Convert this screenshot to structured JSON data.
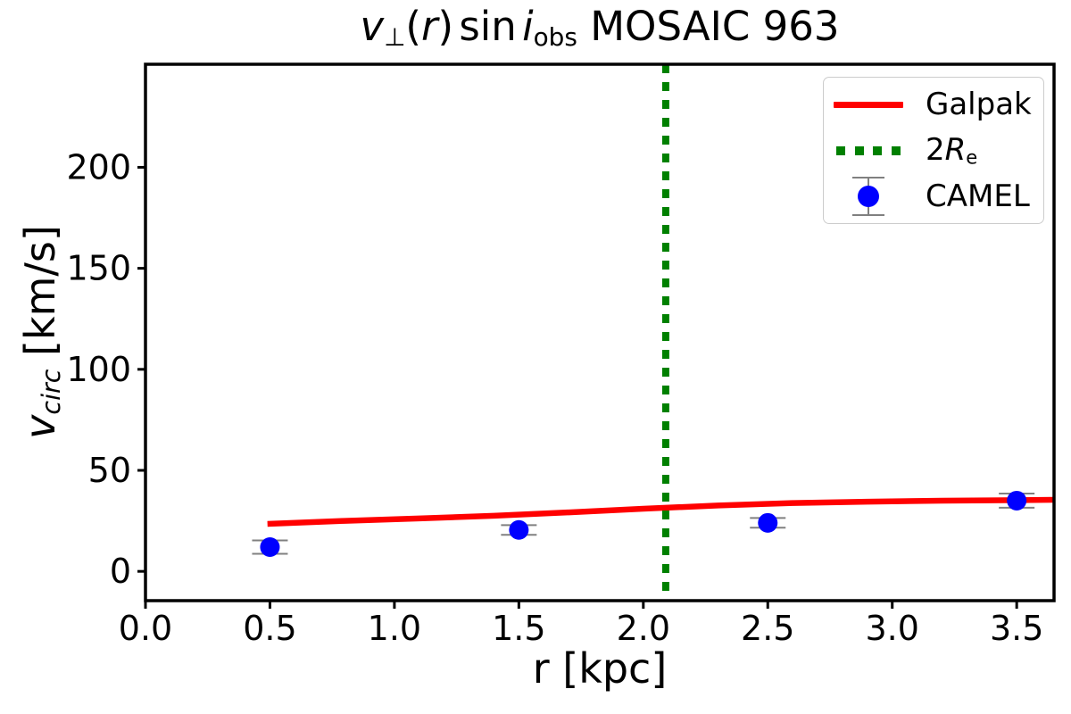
{
  "figure": {
    "title": {
      "v": "v",
      "perp": "⊥",
      "lparen": "(",
      "r": "r",
      "rparen": ")",
      "sin": "sin",
      "i": "i",
      "obs": "obs",
      "suffix": "MOSAIC 963"
    },
    "xlabel": "r [kpc]",
    "ylabel": {
      "v": "v",
      "sub": "circ",
      "units": "[km/s]"
    }
  },
  "legend": {
    "items": [
      {
        "label": "Galpak",
        "type": "line",
        "color": "#ff0000"
      },
      {
        "label_prefix": "2",
        "label_R": "R",
        "label_sub": "e",
        "type": "dotted",
        "color": "#008000"
      },
      {
        "label": "CAMEL",
        "type": "marker",
        "color": "#0000ff",
        "errorbar_color": "#808080"
      }
    ]
  },
  "chart_data": {
    "type": "line+scatter",
    "title": "v_perp(r) sin i_obs MOSAIC 963",
    "xlabel": "r [kpc]",
    "ylabel": "v_circ [km/s]",
    "xlim": [
      0.0,
      3.65
    ],
    "ylim": [
      -14.5,
      251.0
    ],
    "xticks": {
      "values": [
        0.0,
        0.5,
        1.0,
        1.5,
        2.0,
        2.5,
        3.0,
        3.5
      ],
      "labels": [
        "0.0",
        "0.5",
        "1.0",
        "1.5",
        "2.0",
        "2.5",
        "3.0",
        "3.5"
      ]
    },
    "yticks": {
      "values": [
        0,
        50,
        100,
        150,
        200
      ],
      "labels": [
        "0",
        "50",
        "100",
        "150",
        "200"
      ]
    },
    "grid": false,
    "legend_position": "upper right",
    "series": [
      {
        "name": "Galpak",
        "type": "line",
        "color": "#ff0000",
        "linewidth": 6.5,
        "x": [
          0.49,
          0.8,
          1.1,
          1.4,
          1.7,
          2.0,
          2.3,
          2.6,
          2.9,
          3.2,
          3.45,
          3.65
        ],
        "y": [
          23.5,
          25.0,
          26.2,
          27.5,
          29.2,
          31.0,
          32.6,
          33.8,
          34.5,
          35.0,
          35.2,
          35.4
        ]
      },
      {
        "name": "2Re",
        "type": "vline",
        "color": "#008000",
        "x": 2.09,
        "style": "dotted"
      },
      {
        "name": "CAMEL",
        "type": "scatter",
        "color": "#0000ff",
        "errorbar_color": "#808080",
        "x": [
          0.5,
          1.5,
          2.5,
          3.5
        ],
        "y": [
          12.0,
          20.5,
          24.0,
          35.0
        ],
        "yerr": [
          3.3,
          2.4,
          2.4,
          3.5
        ]
      }
    ]
  }
}
